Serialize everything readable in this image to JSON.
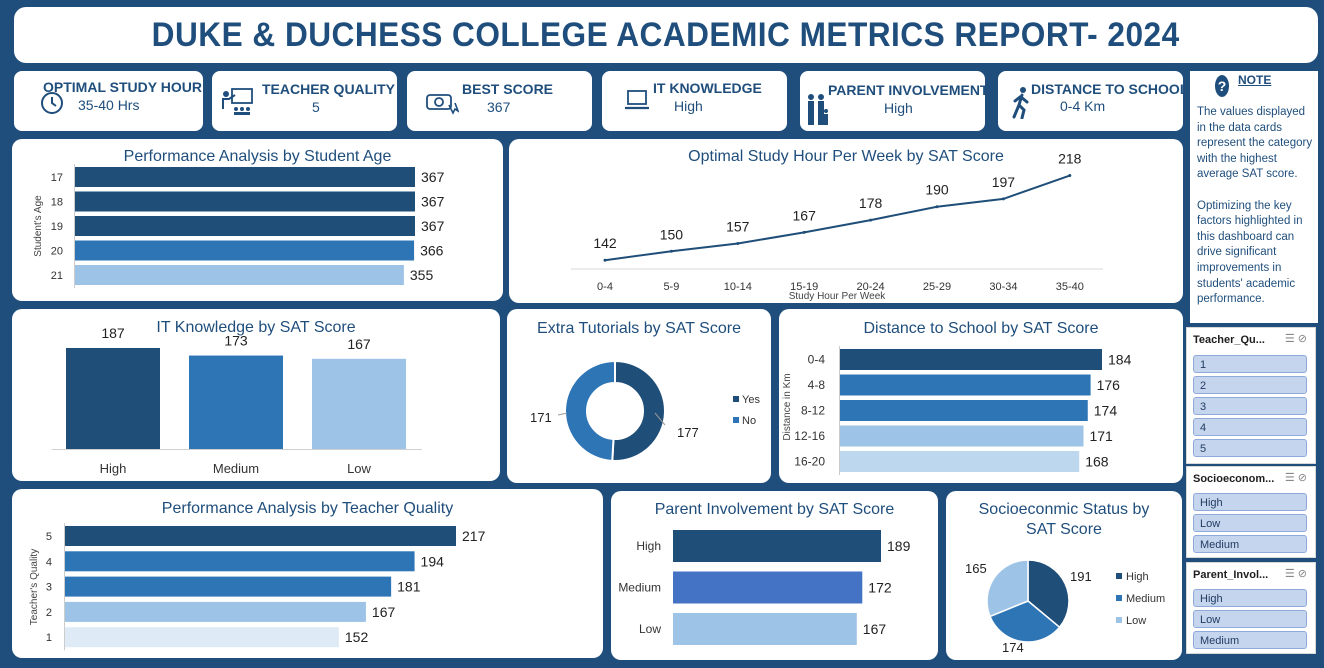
{
  "title": "DUKE & DUCHESS COLLEGE ACADEMIC METRICS REPORT- 2024",
  "cards": [
    {
      "label": "OPTIMAL STUDY HOUR",
      "value": "35-40 Hrs",
      "icon": "clock-icon"
    },
    {
      "label": "TEACHER QUALITY",
      "value": "5",
      "icon": "teacher-icon"
    },
    {
      "label": "BEST SCORE",
      "value": "367",
      "icon": "award-icon"
    },
    {
      "label": "IT KNOWLEDGE",
      "value": "High",
      "icon": "laptop-icon"
    },
    {
      "label": "PARENT INVOLVEMENT",
      "value": "High",
      "icon": "family-icon"
    },
    {
      "label": "DISTANCE TO SCHOOL",
      "value": "0-4 Km",
      "icon": "walking-icon"
    }
  ],
  "note": {
    "title": "NOTE",
    "icon": "info-icon",
    "text": "The values displayed in the data cards represent the category with the highest average SAT score.\n\nOptimizing the key factors highlighted in this dashboard can drive significant improvements in students' academic performance."
  },
  "colors": {
    "background": "#1f4e7c",
    "dark": "#1f4e79",
    "mid": "#2e75b6",
    "light": "#9dc3e6",
    "lighter": "#bdd7ee",
    "lightest": "#deebf7",
    "parent_mid": "#4472c4"
  },
  "chart_data": [
    {
      "id": "age",
      "type": "bar",
      "orientation": "horizontal",
      "title": "Performance Analysis by Student Age",
      "ylabel": "Student's Age",
      "categories": [
        "17",
        "18",
        "19",
        "20",
        "21"
      ],
      "values": [
        367,
        367,
        367,
        366,
        355
      ]
    },
    {
      "id": "study",
      "type": "line",
      "title": "Optimal Study Hour Per Week by SAT Score",
      "xlabel": "Study  Hour Per Week",
      "categories": [
        "0-4",
        "5-9",
        "10-14",
        "15-19",
        "20-24",
        "25-29",
        "30-34",
        "35-40"
      ],
      "values": [
        142,
        150,
        157,
        167,
        178,
        190,
        197,
        218
      ]
    },
    {
      "id": "it",
      "type": "bar",
      "title": "IT Knowledge by SAT Score",
      "categories": [
        "High",
        "Medium",
        "Low"
      ],
      "values": [
        187,
        173,
        167
      ]
    },
    {
      "id": "tutorial",
      "type": "pie",
      "donut": true,
      "title": "Extra Tutorials by SAT Score",
      "categories": [
        "Yes",
        "No"
      ],
      "values": [
        177,
        171
      ]
    },
    {
      "id": "distance",
      "type": "bar",
      "orientation": "horizontal",
      "title": "Distance to School by SAT Score",
      "ylabel": "Distance in Km",
      "categories": [
        "0-4",
        "4-8",
        "8-12",
        "12-16",
        "16-20"
      ],
      "values": [
        184,
        176,
        174,
        171,
        168
      ]
    },
    {
      "id": "teacher",
      "type": "bar",
      "orientation": "horizontal",
      "title": "Performance Analysis by Teacher Quality",
      "ylabel": "Teacher's Quality",
      "categories": [
        "5",
        "4",
        "3",
        "2",
        "1"
      ],
      "values": [
        217,
        194,
        181,
        167,
        152
      ]
    },
    {
      "id": "parent",
      "type": "bar",
      "orientation": "horizontal",
      "title": "Parent Involvement by SAT Score",
      "categories": [
        "High",
        "Medium",
        "Low"
      ],
      "values": [
        189,
        172,
        167
      ]
    },
    {
      "id": "socio",
      "type": "pie",
      "title": "Socioeconmic Status by SAT Score",
      "categories": [
        "High",
        "Medium",
        "Low"
      ],
      "values": [
        191,
        174,
        165
      ]
    }
  ],
  "slicers": [
    {
      "header": "Teacher_Qu...",
      "items": [
        "1",
        "2",
        "3",
        "4",
        "5"
      ]
    },
    {
      "header": "Socioeconom...",
      "items": [
        "High",
        "Low",
        "Medium"
      ]
    },
    {
      "header": "Parent_Invol...",
      "items": [
        "High",
        "Low",
        "Medium"
      ]
    }
  ]
}
